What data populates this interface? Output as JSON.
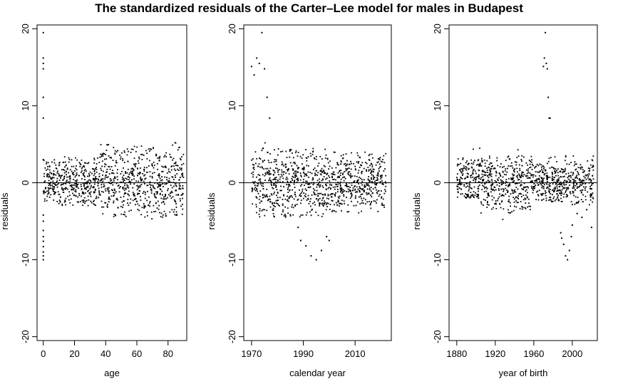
{
  "title": "The standardized residuals of the Carter–Lee model for males in Budapest",
  "chart_data": [
    {
      "type": "scatter",
      "xlabel": "age",
      "ylabel": "residuals",
      "xlim": [
        -4,
        92
      ],
      "ylim": [
        -20.5,
        20.5
      ],
      "x_ticks": [
        0,
        20,
        40,
        60,
        80
      ],
      "y_ticks": [
        -20,
        -10,
        0,
        10,
        20
      ],
      "reference_line_y": 0,
      "grid": false,
      "point_color": "#000000",
      "series": [
        {
          "x": [
            0,
            0,
            0,
            0,
            0,
            0,
            0,
            0,
            0,
            0,
            0,
            0,
            0,
            0,
            0,
            0
          ],
          "y": [
            19.5,
            16.2,
            15.5,
            14.8,
            11.1,
            8.4,
            -6.2,
            -7.0,
            -7.6,
            -8.3,
            -9.0,
            -9.5,
            -10.0,
            -4.2,
            -5.0,
            3.0
          ]
        }
      ],
      "bulk": {
        "x_from": 1,
        "x_to": 90,
        "bands": [
          [
            0,
            10,
            -2.5,
            3.0
          ],
          [
            10,
            35,
            -3.0,
            3.5
          ],
          [
            35,
            55,
            -4.5,
            5.0
          ],
          [
            55,
            75,
            -4.8,
            4.8
          ],
          [
            75,
            90,
            -4.5,
            5.2
          ]
        ]
      }
    },
    {
      "type": "scatter",
      "xlabel": "calendar year",
      "ylabel": "residuals",
      "xlim": [
        1967,
        2024
      ],
      "ylim": [
        -20.5,
        20.5
      ],
      "x_ticks": [
        1970,
        1990,
        2010
      ],
      "y_ticks": [
        -20,
        -10,
        0,
        10,
        20
      ],
      "reference_line_y": 0,
      "grid": false,
      "point_color": "#000000",
      "series": [
        {
          "x": [
            1970,
            1971,
            1972,
            1973,
            1974,
            1975,
            1976,
            1977,
            1988,
            1989,
            1991,
            1993,
            1995,
            1997,
            1999,
            2000
          ],
          "y": [
            15.1,
            14.0,
            16.2,
            15.5,
            19.5,
            14.8,
            11.1,
            8.4,
            -5.8,
            -7.5,
            -8.2,
            -9.5,
            -10.0,
            -8.8,
            -7.0,
            -7.5
          ]
        }
      ],
      "bulk": {
        "x_from": 1970,
        "x_to": 2022,
        "bands": [
          [
            1970,
            1980,
            -4.5,
            5.2
          ],
          [
            1980,
            2000,
            -4.5,
            4.5
          ],
          [
            2000,
            2015,
            -4.0,
            4.0
          ],
          [
            2015,
            2022,
            -3.8,
            3.8
          ]
        ]
      }
    },
    {
      "type": "scatter",
      "xlabel": "year of birth",
      "ylabel": "residuals",
      "xlim": [
        1872,
        2026
      ],
      "ylim": [
        -20.5,
        20.5
      ],
      "x_ticks": [
        1880,
        1920,
        1960,
        2000
      ],
      "y_ticks": [
        -20,
        -10,
        0,
        10,
        20
      ],
      "reference_line_y": 0,
      "grid": false,
      "point_color": "#000000",
      "series": [
        {
          "x": [
            1970,
            1971,
            1972,
            1973,
            1974,
            1975,
            1976,
            1977,
            1988,
            1989,
            1991,
            1993,
            1995,
            1997,
            1999,
            2000,
            2005,
            2010,
            2015,
            2020
          ],
          "y": [
            15.1,
            16.2,
            19.5,
            15.5,
            14.8,
            11.1,
            8.4,
            8.4,
            -6.5,
            -7.2,
            -8.0,
            -9.5,
            -10.0,
            -8.8,
            -7.0,
            -5.5,
            -4.0,
            -4.5,
            -3.5,
            -5.8
          ]
        }
      ],
      "bulk": {
        "x_from": 1880,
        "x_to": 2022,
        "bands": [
          [
            1880,
            1905,
            -2.0,
            5.3
          ],
          [
            1905,
            1940,
            -4.8,
            3.5
          ],
          [
            1940,
            1960,
            -3.5,
            5.0
          ],
          [
            1960,
            2000,
            -2.5,
            3.5
          ],
          [
            2000,
            2022,
            -3.0,
            3.5
          ]
        ]
      }
    }
  ]
}
